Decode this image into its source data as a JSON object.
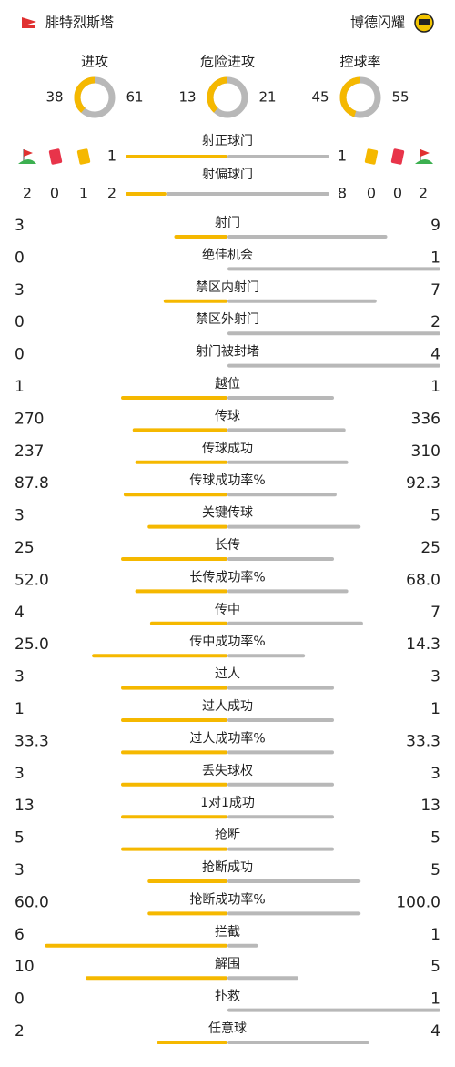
{
  "header": {
    "home_team": "腓特烈斯塔",
    "away_team": "博德闪耀"
  },
  "summary": [
    {
      "label": "进攻",
      "home": 38,
      "away": 61
    },
    {
      "label": "危险进攻",
      "home": 13,
      "away": 21
    },
    {
      "label": "控球率",
      "home": 45,
      "away": 55
    }
  ],
  "cards": {
    "home": {
      "corners": 2,
      "red": 0,
      "yellow": 1
    },
    "away": {
      "yellow": 0,
      "red": 0,
      "corners": 2
    }
  },
  "shots_on_target": {
    "label": "射正球门",
    "home": 1,
    "away": 1
  },
  "shots_off_target": {
    "label": "射偏球门",
    "home": 2,
    "away": 8
  },
  "stats": [
    {
      "label": "射门",
      "home": "3",
      "away": "9"
    },
    {
      "label": "绝佳机会",
      "home": "0",
      "away": "1"
    },
    {
      "label": "禁区内射门",
      "home": "3",
      "away": "7"
    },
    {
      "label": "禁区外射门",
      "home": "0",
      "away": "2"
    },
    {
      "label": "射门被封堵",
      "home": "0",
      "away": "4"
    },
    {
      "label": "越位",
      "home": "1",
      "away": "1"
    },
    {
      "label": "传球",
      "home": "270",
      "away": "336"
    },
    {
      "label": "传球成功",
      "home": "237",
      "away": "310"
    },
    {
      "label": "传球成功率%",
      "home": "87.8",
      "away": "92.3"
    },
    {
      "label": "关键传球",
      "home": "3",
      "away": "5"
    },
    {
      "label": "长传",
      "home": "25",
      "away": "25"
    },
    {
      "label": "长传成功率%",
      "home": "52.0",
      "away": "68.0"
    },
    {
      "label": "传中",
      "home": "4",
      "away": "7"
    },
    {
      "label": "传中成功率%",
      "home": "25.0",
      "away": "14.3"
    },
    {
      "label": "过人",
      "home": "3",
      "away": "3"
    },
    {
      "label": "过人成功",
      "home": "1",
      "away": "1"
    },
    {
      "label": "过人成功率%",
      "home": "33.3",
      "away": "33.3"
    },
    {
      "label": "丢失球权",
      "home": "3",
      "away": "3"
    },
    {
      "label": "1对1成功",
      "home": "13",
      "away": "13"
    },
    {
      "label": "抢断",
      "home": "5",
      "away": "5"
    },
    {
      "label": "抢断成功",
      "home": "3",
      "away": "5"
    },
    {
      "label": "抢断成功率%",
      "home": "60.0",
      "away": "100.0"
    },
    {
      "label": "拦截",
      "home": "6",
      "away": "1"
    },
    {
      "label": "解围",
      "home": "10",
      "away": "5"
    },
    {
      "label": "扑救",
      "home": "0",
      "away": "1"
    },
    {
      "label": "任意球",
      "home": "2",
      "away": "4"
    }
  ]
}
